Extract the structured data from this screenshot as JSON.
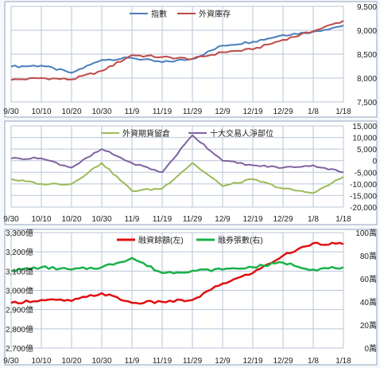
{
  "x_tick_labels": [
    "9/30",
    "10/10",
    "10/20",
    "10/30",
    "11/9",
    "11/19",
    "11/29",
    "12/9",
    "12/19",
    "12/29",
    "1/8",
    "1/18"
  ],
  "colors": {
    "index": "#4a7ebb",
    "foreign_inventory": "#be4b48",
    "foreign_futures": "#9bbb59",
    "top10": "#7f63a0",
    "margin_balance": "#e01010",
    "short_balance": "#1ab14a"
  },
  "chart_data": [
    {
      "type": "line",
      "x": [
        "9/30",
        "10/10",
        "10/20",
        "10/30",
        "11/9",
        "11/19",
        "11/29",
        "12/9",
        "12/19",
        "12/29",
        "1/8",
        "1/18"
      ],
      "series": [
        {
          "name": "指數",
          "axis": "left",
          "values": [
            8240,
            8260,
            8110,
            8380,
            8420,
            8330,
            8400,
            8680,
            8760,
            8900,
            8970,
            9100
          ]
        },
        {
          "name": "外資庫存",
          "axis": "left",
          "values": [
            7960,
            8000,
            7970,
            8150,
            8480,
            8440,
            8400,
            8540,
            8600,
            8800,
            8980,
            9200
          ]
        }
      ],
      "ylim_left": [
        7500,
        9500
      ],
      "y_ticks_left": [
        "7,500",
        "8,000",
        "8,500",
        "9,000",
        "9,500"
      ]
    },
    {
      "type": "line",
      "x": [
        "9/30",
        "10/10",
        "10/20",
        "10/30",
        "11/9",
        "11/19",
        "11/29",
        "12/9",
        "12/19",
        "12/29",
        "1/8",
        "1/18"
      ],
      "series": [
        {
          "name": "外資期貨留倉",
          "values": [
            -8000,
            -10000,
            -10000,
            -1000,
            -13000,
            -12000,
            -1000,
            -11000,
            -8000,
            -12000,
            -14000,
            -7000
          ]
        },
        {
          "name": "十大交易人淨部位",
          "values": [
            1000,
            1000,
            -3000,
            5000,
            -1000,
            -5000,
            11000,
            0,
            -2000,
            -3000,
            -2000,
            -5000
          ]
        }
      ],
      "ylim": [
        -20000,
        15000
      ],
      "y_ticks": [
        "-20,000",
        "-15,000",
        "-10,000",
        "-5,000",
        "0",
        "5,000",
        "10,000",
        "15,000"
      ]
    },
    {
      "type": "line",
      "x": [
        "9/30",
        "10/10",
        "10/20",
        "10/30",
        "11/9",
        "11/19",
        "11/29",
        "12/9",
        "12/19",
        "12/29",
        "1/8",
        "1/18"
      ],
      "series": [
        {
          "name": "融資餘額(左)",
          "axis": "left",
          "values": [
            2935,
            2950,
            2945,
            2985,
            2935,
            2940,
            2950,
            3035,
            3090,
            3180,
            3245,
            3240
          ]
        },
        {
          "name": "融券張數(右)",
          "axis": "right",
          "values": [
            67,
            70,
            68,
            70,
            78,
            65,
            67,
            68,
            70,
            74,
            68,
            70
          ]
        }
      ],
      "ylim_left": [
        2700,
        3300
      ],
      "ylim_right": [
        0,
        100
      ],
      "y_ticks_left": [
        "2,700億",
        "2,800億",
        "2,900億",
        "3,000億",
        "3,100億",
        "3,200億",
        "3,300億"
      ],
      "y_ticks_right": [
        "0萬",
        "20萬",
        "40萬",
        "60萬",
        "80萬",
        "100萬"
      ]
    }
  ]
}
